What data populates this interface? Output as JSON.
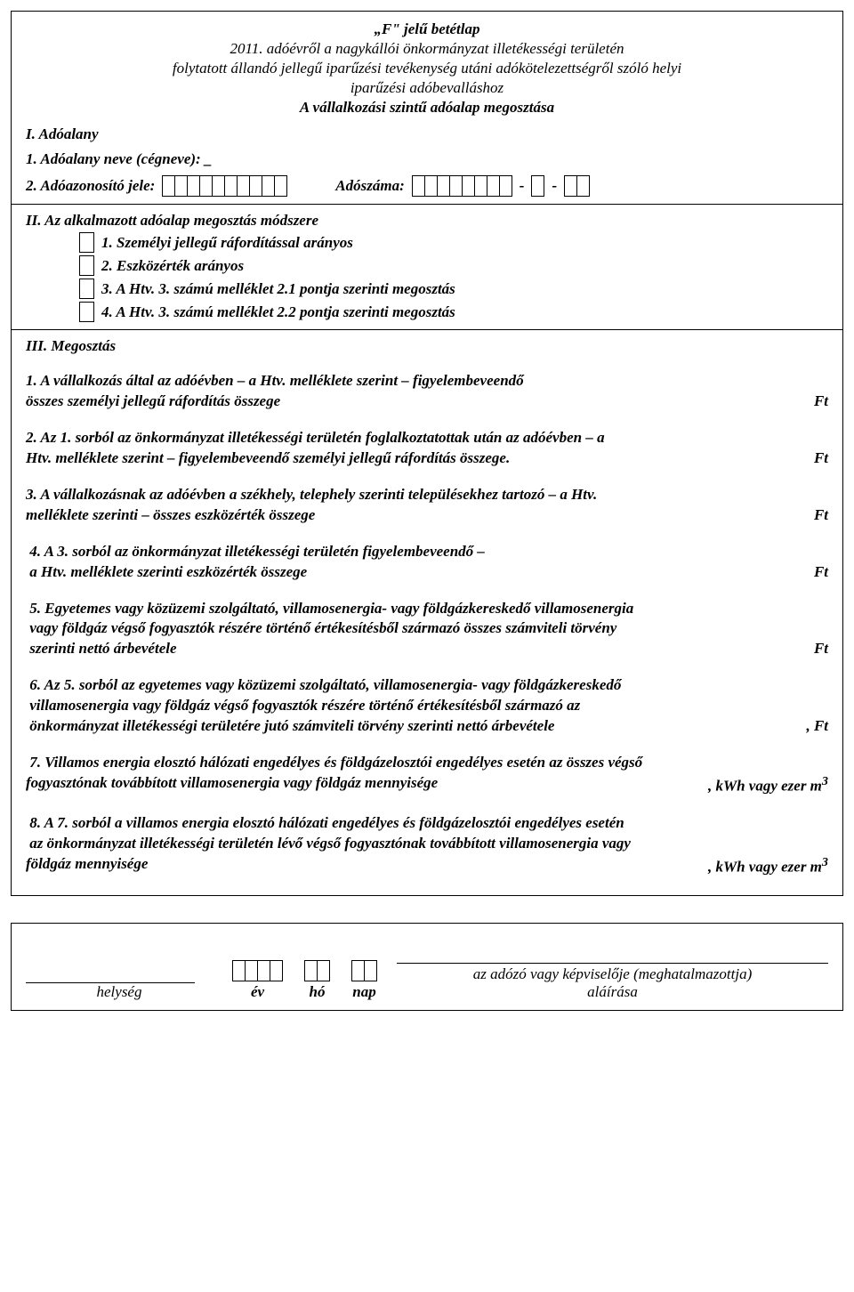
{
  "header": {
    "title1": "„F\" jelű betétlap",
    "title2": "2011. adóévről a nagykállói önkormányzat illetékességi területén",
    "title3": "folytatott állandó jellegű iparűzési tevékenység utáni adókötelezettségről szóló helyi",
    "title4": "iparűzési adóbevalláshoz",
    "title5": "A vállalkozási szintű adóalap megosztása"
  },
  "s1": {
    "heading": "I. Adóalany",
    "l1": "1. Adóalany neve (cégneve): _",
    "l2a": "2. Adóazonosító jele:",
    "l2b": "Adószáma:"
  },
  "s2": {
    "heading": "II. Az alkalmazott adóalap megosztás módszere",
    "opt1": "1. Személyi jellegű ráfordítással arányos",
    "opt2": "2. Eszközérték arányos",
    "opt3": "3. A Htv. 3. számú melléklet 2.1 pontja szerinti megosztás",
    "opt4": "4. A Htv. 3. számú melléklet 2.2 pontja szerinti megosztás"
  },
  "s3": {
    "heading": "III. Megosztás",
    "p1a": "1. A vállalkozás által az adóévben – a Htv. melléklete szerint – figyelembeveendő",
    "p1b": "összes személyi jellegű ráfordítás összege",
    "ft": "Ft",
    "p2a": "2. Az 1. sorból az önkormányzat illetékességi területén foglalkoztatottak után az adóévben – a",
    "p2b": "Htv. melléklete szerint – figyelembeveendő személyi jellegű ráfordítás összege.",
    "p3a": "3. A vállalkozásnak az adóévben a székhely, telephely szerinti településekhez tartozó – a Htv.",
    "p3b": "melléklete szerinti – összes eszközérték összege",
    "p4a": "4. A 3. sorból az önkormányzat illetékességi területén figyelembeveendő –",
    "p4b": "a Htv. melléklete szerinti eszközérték összege",
    "p5a": "5. Egyetemes vagy közüzemi szolgáltató, villamosenergia- vagy földgázkereskedő villamosenergia",
    "p5b": "vagy földgáz végső fogyasztók részére történő értékesítésből származó összes számviteli törvény",
    "p5c": "szerinti nettó árbevétele",
    "p6a": "6. Az 5. sorból az egyetemes vagy közüzemi szolgáltató, villamosenergia- vagy földgázkereskedő",
    "p6b": "villamosenergia vagy földgáz végső fogyasztók részére történő értékesítésből származó az",
    "p6c": "önkormányzat illetékességi területére jutó számviteli törvény szerinti nettó árbevétele",
    "p6tail": ", Ft",
    "p7a": "7. Villamos energia elosztó hálózati engedélyes és földgázelosztói engedélyes esetén az összes végső",
    "p7b": "fogyasztónak továbbított villamosenergia vagy földgáz mennyisége",
    "p7tail": ", kWh vagy ezer m",
    "sup3": "3",
    "p8a": "8. A 7. sorból a villamos energia elosztó hálózati engedélyes és földgázelosztói engedélyes esetén",
    "p8b": "az önkormányzat illetékességi területén lévő végső fogyasztónak továbbított villamosenergia vagy",
    "p8c": "földgáz mennyisége"
  },
  "sig": {
    "place": "helység",
    "year": "év",
    "month": "hó",
    "day": "nap",
    "signer": "az adózó vagy képviselője (meghatalmazottja)",
    "signer2": "aláírása"
  },
  "cells": {
    "adoazon": 10,
    "adoszam_a": 8,
    "adoszam_b": 1,
    "adoszam_c": 2,
    "year": 4,
    "month": 2,
    "day": 2
  }
}
